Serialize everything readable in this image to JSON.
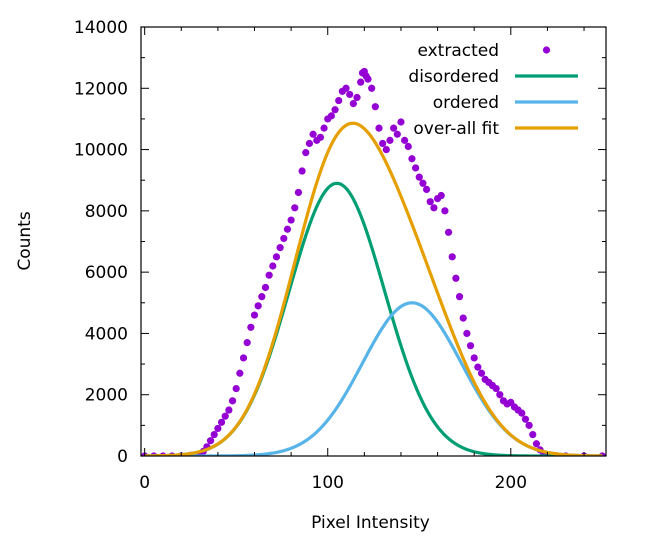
{
  "chart_data": {
    "type": "line",
    "xlabel": "Pixel Intensity",
    "ylabel": "Counts",
    "xlim": [
      -2,
      252
    ],
    "ylim": [
      0,
      14000
    ],
    "x_ticks": [
      0,
      100,
      200
    ],
    "y_ticks": [
      0,
      2000,
      4000,
      6000,
      8000,
      10000,
      12000,
      14000
    ],
    "x_tick_labels": [
      "0",
      "100",
      "200"
    ],
    "y_tick_labels": [
      "0",
      "2000",
      "4000",
      "6000",
      "8000",
      "10000",
      "12000",
      "14000"
    ],
    "grid": false,
    "legend_position": "top-right",
    "legend": [
      {
        "label": "extracted",
        "style": "points",
        "color": "#9400d3"
      },
      {
        "label": "disordered",
        "style": "line",
        "color": "#009e73"
      },
      {
        "label": "ordered",
        "style": "line",
        "color": "#56b4e9"
      },
      {
        "label": "over-all fit",
        "style": "line",
        "color": "#e69f00"
      }
    ],
    "series": [
      {
        "name": "extracted",
        "style": "points",
        "color": "#9400d3",
        "x": [
          0,
          5,
          10,
          15,
          20,
          25,
          30,
          32,
          34,
          36,
          38,
          40,
          42,
          44,
          46,
          48,
          50,
          52,
          54,
          56,
          58,
          60,
          62,
          64,
          66,
          68,
          70,
          72,
          74,
          76,
          78,
          80,
          82,
          84,
          86,
          88,
          90,
          92,
          94,
          96,
          98,
          100,
          102,
          104,
          106,
          108,
          110,
          112,
          114,
          116,
          118,
          119,
          120,
          121,
          122,
          124,
          126,
          128,
          130,
          132,
          134,
          136,
          138,
          140,
          142,
          144,
          146,
          148,
          150,
          152,
          154,
          156,
          158,
          160,
          162,
          164,
          166,
          168,
          170,
          172,
          174,
          176,
          178,
          180,
          182,
          184,
          186,
          188,
          190,
          192,
          194,
          196,
          198,
          200,
          202,
          204,
          206,
          208,
          210,
          212,
          214,
          216,
          218,
          220,
          222,
          225,
          230,
          240,
          250
        ],
        "y": [
          0,
          0,
          0,
          0,
          0,
          20,
          60,
          150,
          300,
          500,
          700,
          900,
          1100,
          1300,
          1500,
          1800,
          2200,
          2700,
          3200,
          3700,
          4200,
          4600,
          4900,
          5200,
          5500,
          5900,
          6200,
          6500,
          6800,
          7100,
          7400,
          7700,
          8100,
          8600,
          9300,
          9900,
          10200,
          10500,
          10300,
          10400,
          10700,
          11000,
          11100,
          11300,
          11600,
          11900,
          12000,
          11800,
          11500,
          11700,
          12200,
          12500,
          12550,
          12400,
          12300,
          12000,
          11400,
          10700,
          10200,
          10000,
          10300,
          10700,
          10500,
          10900,
          10300,
          10100,
          9700,
          9400,
          9100,
          8900,
          8700,
          8300,
          8100,
          8400,
          8500,
          8000,
          7300,
          6500,
          5800,
          5200,
          4500,
          4000,
          3600,
          3200,
          2900,
          2700,
          2500,
          2400,
          2300,
          2200,
          2000,
          1800,
          1700,
          1750,
          1600,
          1500,
          1400,
          1200,
          1000,
          700,
          400,
          200,
          50,
          10,
          0,
          0,
          0,
          0,
          0
        ]
      },
      {
        "name": "disordered",
        "style": "line",
        "color": "#009e73",
        "gaussian": {
          "amplitude": 8900,
          "center": 105,
          "sigma": 26
        }
      },
      {
        "name": "ordered",
        "style": "line",
        "color": "#56b4e9",
        "gaussian": {
          "amplitude": 5000,
          "center": 146,
          "sigma": 27
        }
      }
    ],
    "overall_fit": {
      "name": "over-all fit",
      "style": "line",
      "color": "#e69f00",
      "sum_of": [
        "disordered",
        "ordered"
      ]
    }
  }
}
